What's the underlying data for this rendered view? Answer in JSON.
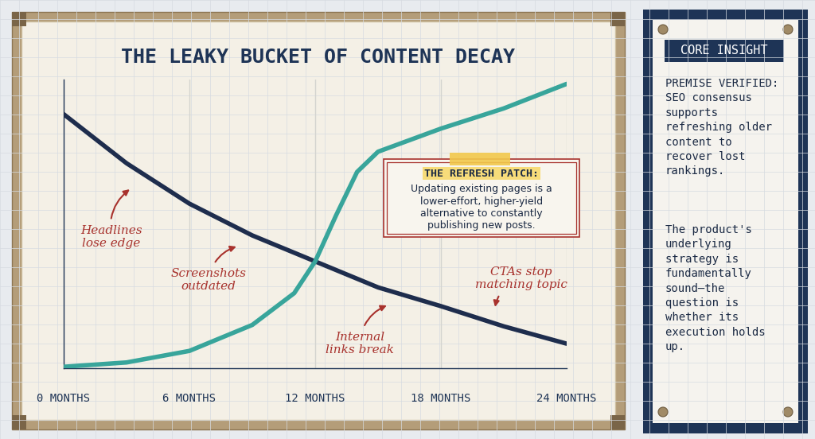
{
  "chart_data": {
    "type": "line",
    "title": "THE LEAKY BUCKET OF CONTENT DECAY",
    "x": [
      0,
      3,
      6,
      9,
      11,
      12,
      13,
      14,
      15,
      18,
      21,
      24
    ],
    "series": [
      {
        "color": "#1e2d4d",
        "line_style": "solid",
        "values": [
          88,
          71,
          57,
          46,
          40,
          37,
          34,
          31,
          28,
          21.5,
          14.5,
          8.5
        ]
      },
      {
        "color": "#38a59b",
        "line_style": "solid",
        "values": [
          0.5,
          2,
          6,
          15,
          26,
          37,
          53,
          68,
          75,
          83,
          90,
          98.5
        ]
      }
    ],
    "xlim": [
      0,
      24
    ],
    "xticks": [
      {
        "value": 0,
        "label": "0 MONTHS"
      },
      {
        "value": 6,
        "label": "6 MONTHS"
      },
      {
        "value": 12,
        "label": "12 MONTHS"
      },
      {
        "value": 18,
        "label": "18 MONTHS"
      },
      {
        "value": 24,
        "label": "24 MONTHS"
      }
    ],
    "ylim": [
      0,
      100
    ],
    "yticks": [],
    "tick_labels": "x",
    "grid": true,
    "annotations": [
      "Headlines lose edge",
      "Screenshots outdated",
      "Internal links break",
      "CTAs stop matching topic"
    ],
    "callout": {
      "heading": "THE REFRESH PATCH:",
      "text": "Updating existing pages is a lower-effort, higher-yield alternative to constantly publishing new posts."
    }
  },
  "side_panel": {
    "heading": "CORE INSIGHT",
    "paragraphs": [
      "PREMISE VERIFIED: SEO consensus supports refreshing older content to recover lost rankings.",
      "The product's underlying strategy is fundamentally sound—the question is whether its execution holds up."
    ]
  }
}
